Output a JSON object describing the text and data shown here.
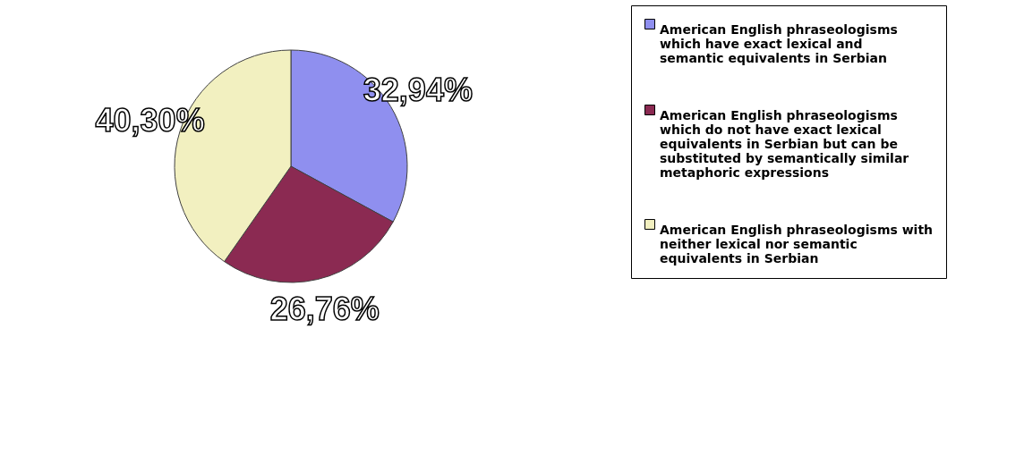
{
  "chart_data": {
    "type": "pie",
    "categories": [
      "American English phraseologisms which have exact lexical and semantic equivalents in Serbian",
      "American English phraseologisms which do not have exact lexical equivalents in Serbian but can be substituted by semantically similar metaphoric expressions",
      "American English phraseologisms with neither lexical nor semantic equivalents in Serbian"
    ],
    "values": [
      32.94,
      26.76,
      40.3
    ],
    "value_labels": [
      "32,94%",
      "26,76%",
      "40,30%"
    ],
    "colors": [
      "#8f8fef",
      "#8b2a52",
      "#f2f0c0"
    ],
    "legend": "right"
  }
}
